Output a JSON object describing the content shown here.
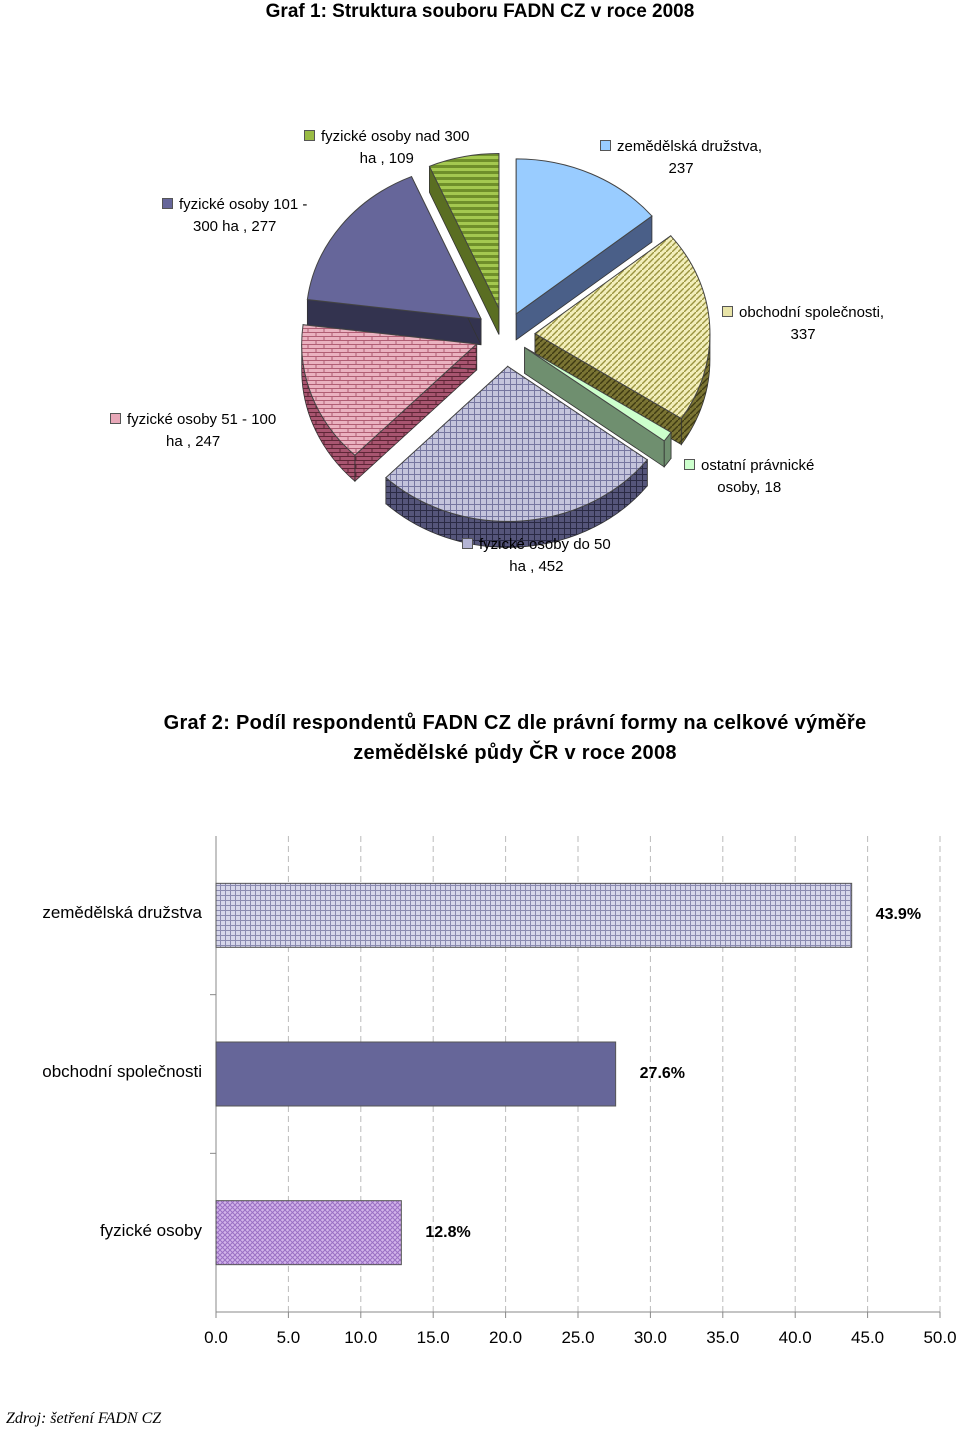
{
  "chart_data": [
    {
      "type": "pie",
      "title": "Graf 1: Struktura souboru FADN CZ v roce 2008",
      "categories": [
        "zemědělská družstva",
        "obchodní společnosti",
        "ostatní právnické osoby",
        "fyzické osoby do 50 ha",
        "fyzické osoby 51 - 100 ha",
        "fyzické osoby 101 - 300 ha",
        "fyzické osoby nad 300 ha"
      ],
      "values": [
        237,
        337,
        18,
        452,
        247,
        277,
        109
      ],
      "labels": [
        [
          "zemědělská družstva,",
          "237"
        ],
        [
          "obchodní společnosti,",
          "337"
        ],
        [
          "ostatní právnické",
          "osoby, 18"
        ],
        [
          "fyzické osoby do 50",
          "ha , 452"
        ],
        [
          "fyzické osoby 51 - 100",
          "ha , 247"
        ],
        [
          "fyzické osoby 101 -",
          "300 ha , 277"
        ],
        [
          "fyzické osoby nad 300",
          "ha , 109"
        ]
      ],
      "colors": [
        "#99ccff",
        "#e8e4a8",
        "#ccffcc",
        "#b4b4d4",
        "#e8a8b8",
        "#66669a",
        "#99bb44"
      ],
      "style": "3d-exploded"
    },
    {
      "type": "bar",
      "orientation": "horizontal",
      "title": "Graf 2: Podíl respondentů FADN CZ dle právní formy na celkové výměře zemědělské půdy ČR v roce 2008",
      "title_lines": [
        "Graf 2: Podíl respondentů FADN CZ dle právní formy na celkové výměře",
        "zemědělské půdy ČR v roce 2008"
      ],
      "categories": [
        "zemědělská družstva",
        "obchodní společnosti",
        "fyzické osoby"
      ],
      "values": [
        43.9,
        27.6,
        12.8
      ],
      "value_labels": [
        "43.9%",
        "27.6%",
        "12.8%"
      ],
      "xlim": [
        0,
        50
      ],
      "xticks": [
        "0.0",
        "5.0",
        "10.0",
        "15.0",
        "20.0",
        "25.0",
        "30.0",
        "35.0",
        "40.0",
        "45.0",
        "50.0"
      ],
      "grid": "vertical dashed",
      "colors": [
        "#c8c8e0",
        "#666699",
        "#c8a8e0"
      ]
    }
  ],
  "source": "Zdroj: šetření FADN CZ"
}
